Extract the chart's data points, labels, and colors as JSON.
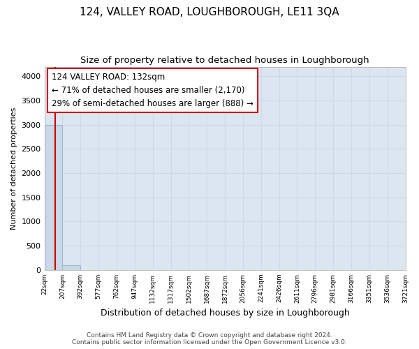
{
  "title": "124, VALLEY ROAD, LOUGHBOROUGH, LE11 3QA",
  "subtitle": "Size of property relative to detached houses in Loughborough",
  "xlabel": "Distribution of detached houses by size in Loughborough",
  "ylabel": "Number of detached properties",
  "footer_line1": "Contains HM Land Registry data © Crown copyright and database right 2024.",
  "footer_line2": "Contains public sector information licensed under the Open Government Licence v3.0.",
  "bin_edges": [
    22,
    207,
    392,
    577,
    762,
    947,
    1132,
    1317,
    1502,
    1687,
    1872,
    2056,
    2241,
    2426,
    2611,
    2796,
    2981,
    3166,
    3351,
    3536,
    3721
  ],
  "bar_heights": [
    3000,
    100,
    0,
    0,
    0,
    0,
    0,
    0,
    0,
    0,
    0,
    0,
    0,
    0,
    0,
    0,
    0,
    0,
    0,
    0
  ],
  "bar_color": "#c8d8e8",
  "bar_edgecolor": "#a0b8cc",
  "grid_color": "#d0d8e8",
  "property_size": 132,
  "property_line_color": "#cc0000",
  "annotation_line1": "124 VALLEY ROAD: 132sqm",
  "annotation_line2": "← 71% of detached houses are smaller (2,170)",
  "annotation_line3": "29% of semi-detached houses are larger (888) →",
  "annotation_box_color": "#ffffff",
  "annotation_box_edgecolor": "#cc0000",
  "ylim": [
    0,
    4200
  ],
  "yticks": [
    0,
    500,
    1000,
    1500,
    2000,
    2500,
    3000,
    3500,
    4000
  ],
  "background_color": "#dce6f0",
  "title_fontsize": 11,
  "subtitle_fontsize": 9.5,
  "annotation_fontsize": 8.5
}
